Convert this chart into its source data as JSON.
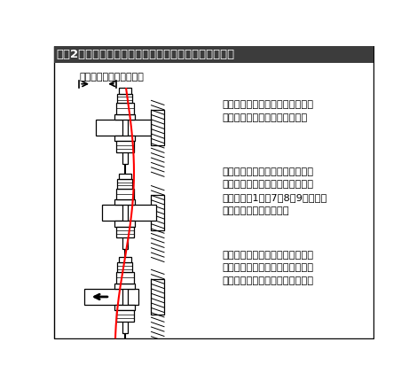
{
  "title": "》図2》軸直角方向の繰り返し外力によるゆるみモデル",
  "title_text": "【図2】軸直角方向の繰り返し外力によるゆるみモデル",
  "title_bg": "#3c3c3c",
  "title_color": "#ffffff",
  "bg_color": "#ffffff",
  "border_color": "#000000",
  "label_displacement": "外力による部品の変位幅",
  "text1": "左図は軸直角方向の繰り返し外力\nによるゆるみを図解したもの。",
  "text2": "自動機などを運搬車で長距離移送\nしたのちに多発するねじ部のゆる\nみは、【表1】の7、8、9が複合し\nて働くことによるもの。",
  "text3": "したがって、移送まえのねじ部の\n増す締めと移設後のねじ部のゆる\nみ状態の確認・増す締めが必要。",
  "red_line_color": "#ff0000",
  "line_color": "#000000"
}
